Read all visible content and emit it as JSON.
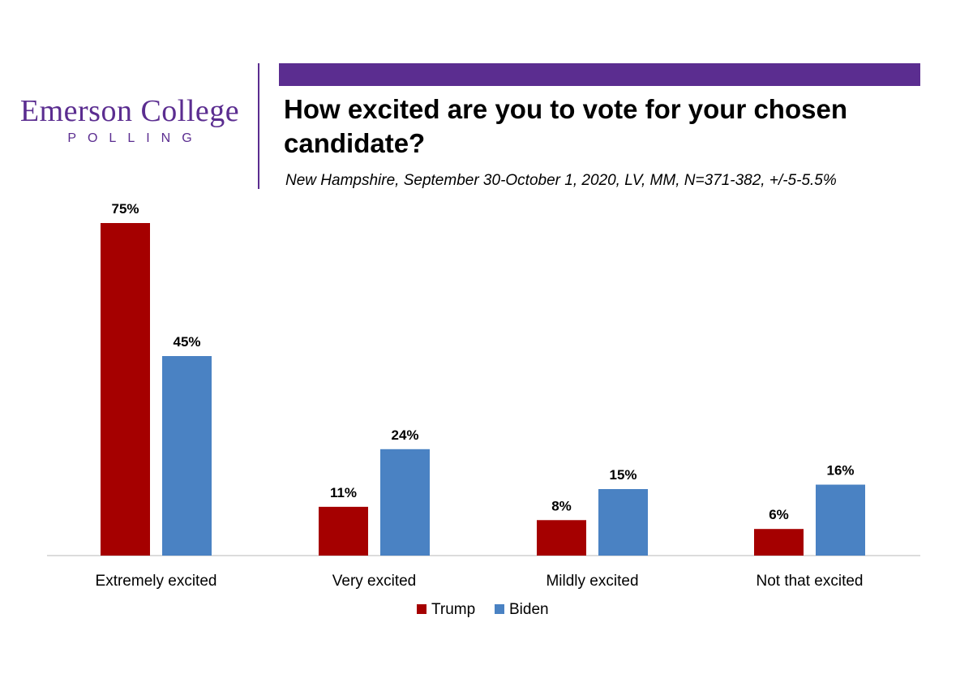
{
  "header": {
    "logo_line1": "Emerson College",
    "logo_line2": "POLLING",
    "accent_color": "#5b2d90"
  },
  "chart_data": {
    "type": "bar",
    "title": "How excited are you to vote for your chosen candidate?",
    "subtitle": "New Hampshire, September 30-October 1, 2020, LV, MM,  N=371-382, +/-5-5.5%",
    "categories": [
      "Extremely excited",
      "Very excited",
      "Mildly excited",
      "Not that excited"
    ],
    "series": [
      {
        "name": "Trump",
        "color": "#a50000",
        "values": [
          75,
          11,
          8,
          6
        ],
        "labels": [
          "75%",
          "11%",
          "8%",
          "6%"
        ]
      },
      {
        "name": "Biden",
        "color": "#4a82c3",
        "values": [
          45,
          24,
          15,
          16
        ],
        "labels": [
          "45%",
          "24%",
          "15%",
          "16%"
        ]
      }
    ],
    "ylim": [
      0,
      75
    ],
    "xlabel": "",
    "ylabel": "",
    "grid": false,
    "legend": "bottom"
  }
}
